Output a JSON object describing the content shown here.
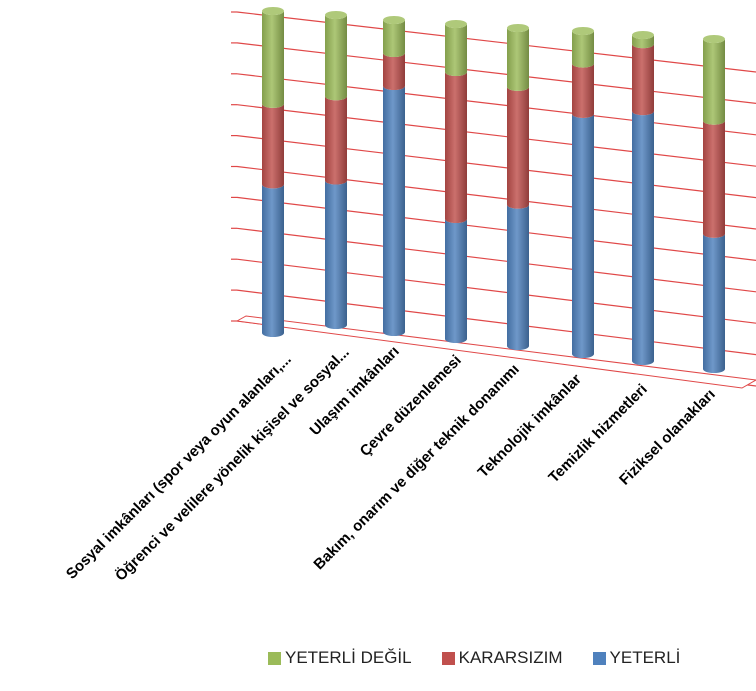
{
  "chart_data": {
    "type": "bar",
    "stacked": "percent",
    "perspective": "3d-cylinder",
    "categories": [
      "Sosyal imkânları (spor veya oyun alanları,...",
      "Öğrenci ve velilere yönelik kişisel ve sosyal...",
      "Ulaşım imkânları",
      "Çevre düzenlemesi",
      "Bakım, onarım ve diğer teknik donanımı",
      "Teknolojik imkânlar",
      "Temizlik hizmetleri",
      "Fiziksel olanakları"
    ],
    "series": [
      {
        "name": "YETERLİ",
        "color": "#4F81BD",
        "values": [
          48,
          48,
          82,
          40,
          48,
          81,
          82,
          43
        ]
      },
      {
        "name": "KARARSIZIM",
        "color": "#C0504D",
        "values": [
          26,
          28,
          11,
          49,
          40,
          17,
          22,
          36
        ]
      },
      {
        "name": "YETERLİ DEĞİL",
        "color": "#9BBB59",
        "values": [
          30,
          27,
          11,
          16,
          20,
          11,
          3,
          26
        ]
      }
    ],
    "legend_order": [
      "YETERLİ DEĞİL",
      "KARARSIZIM",
      "YETERLİ"
    ],
    "ylim": [
      0,
      100
    ],
    "grid": true,
    "legend_position": "bottom-right"
  }
}
